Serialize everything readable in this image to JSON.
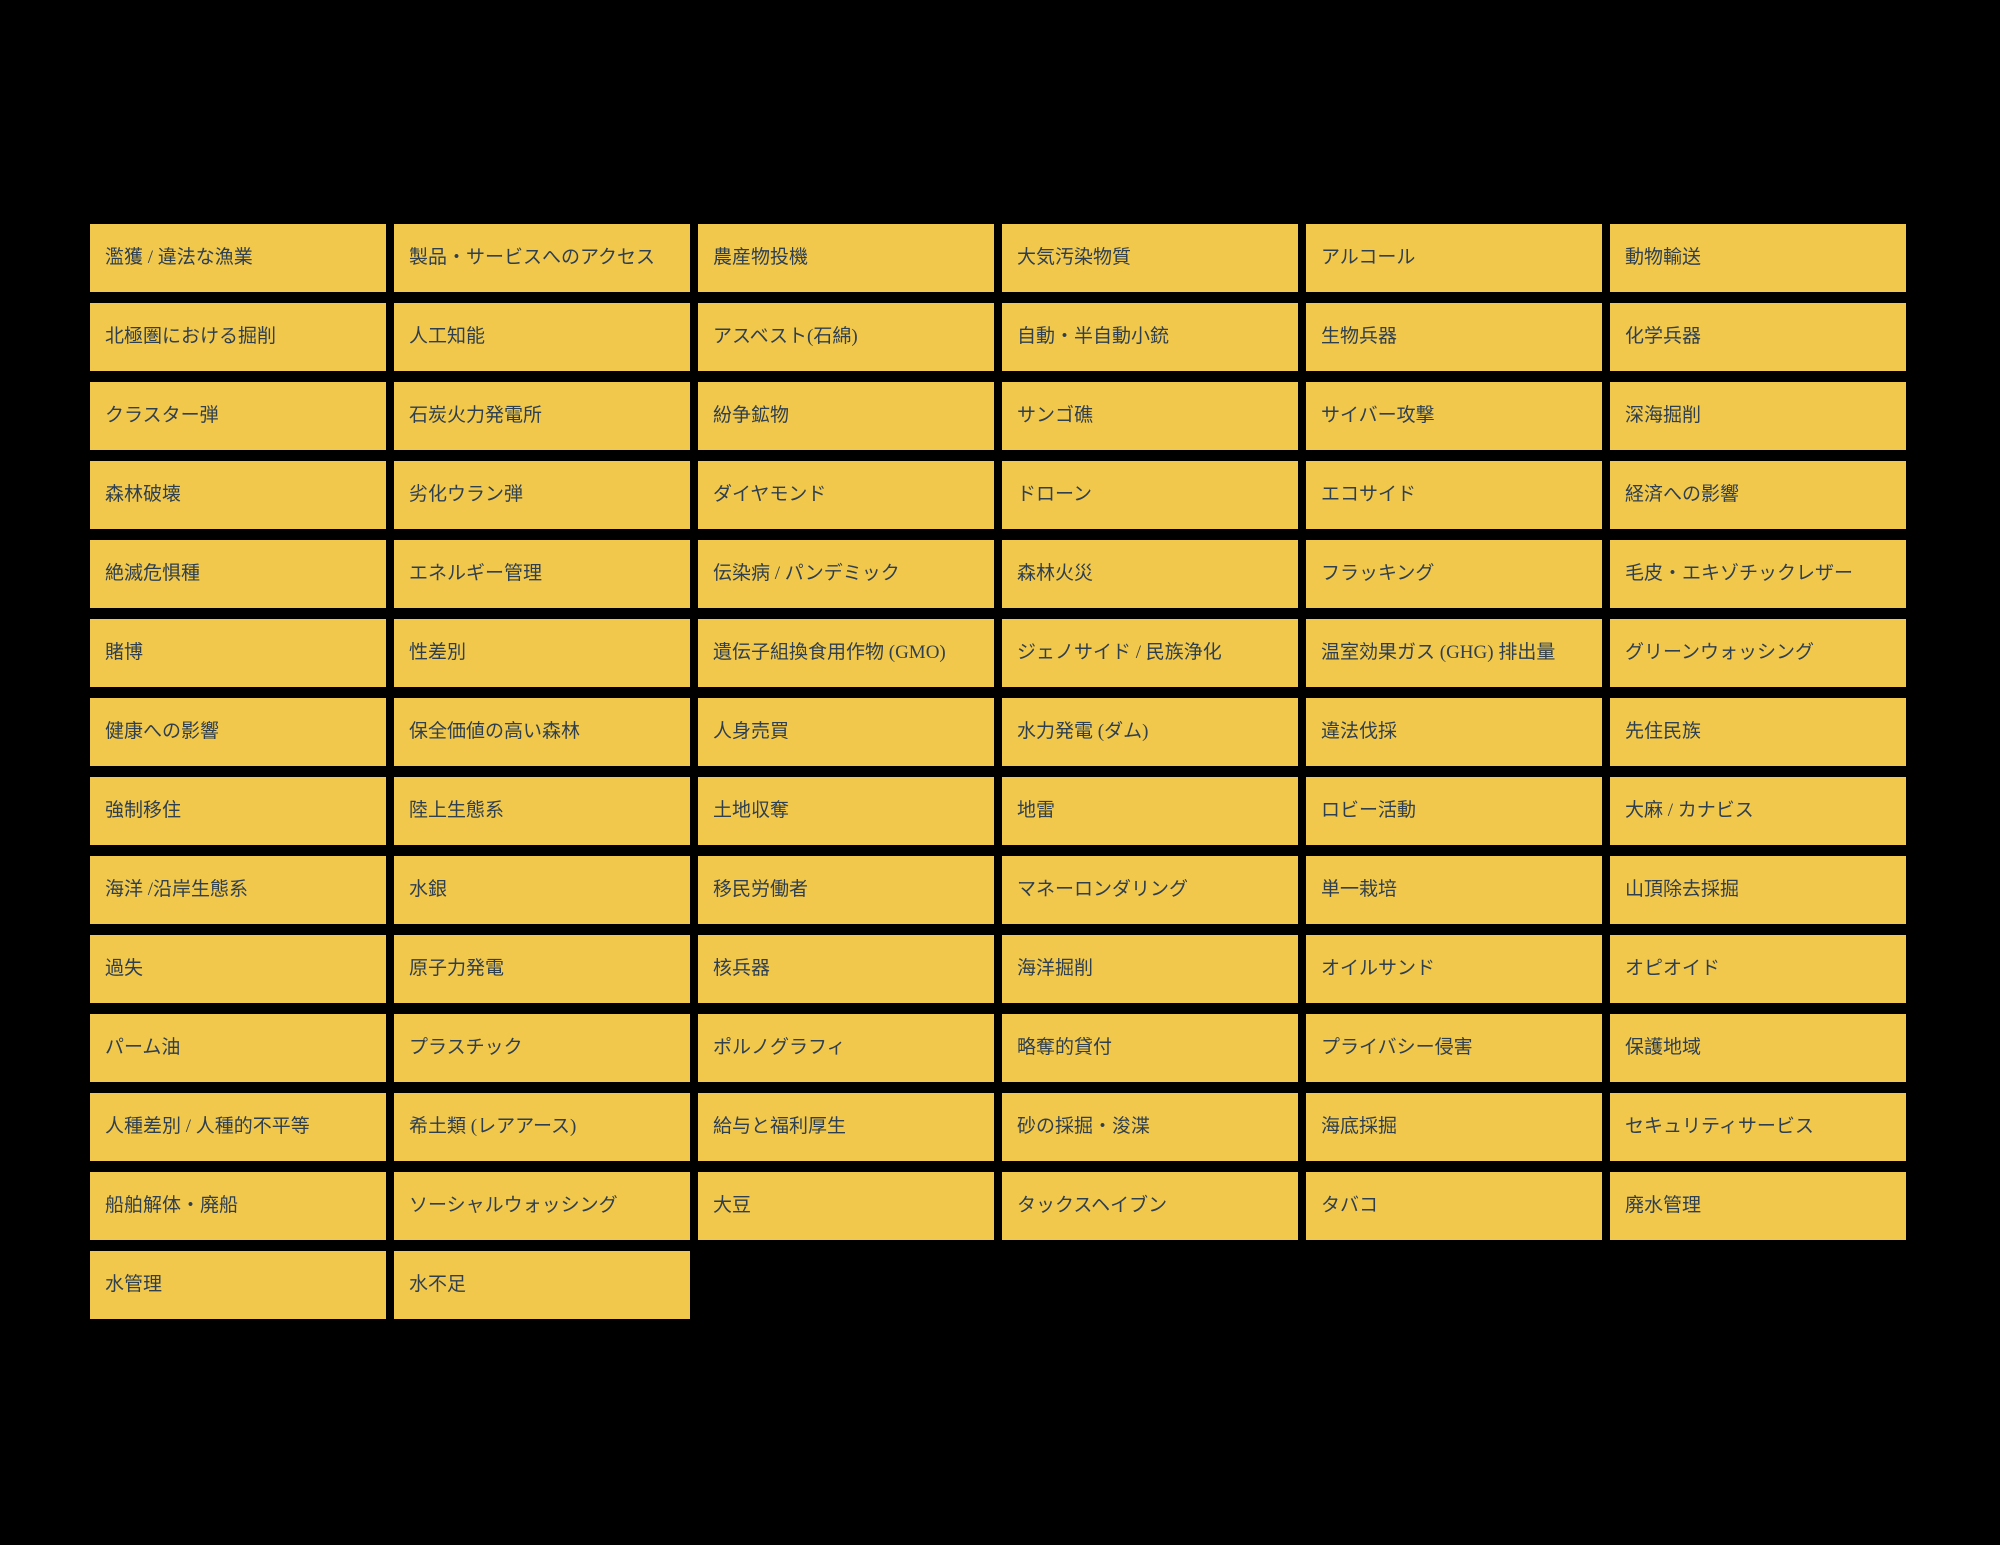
{
  "page": {
    "background_color": "#000000"
  },
  "grid": {
    "button_color": "#F2C84C",
    "text_color": "#2E3F50",
    "columns": 6,
    "items": [
      "濫獲 / 違法な漁業",
      "製品・サービスへのアクセス",
      "農産物投機",
      "大気汚染物質",
      "アルコール",
      "動物輸送",
      "北極圏における掘削",
      "人工知能",
      "アスベスト(石綿)",
      "自動・半自動小銃",
      "生物兵器",
      "化学兵器",
      "クラスター弾",
      "石炭火力発電所",
      "紛争鉱物",
      "サンゴ礁",
      "サイバー攻撃",
      "深海掘削",
      "森林破壊",
      "劣化ウラン弾",
      "ダイヤモンド",
      "ドローン",
      "エコサイド",
      "経済への影響",
      "絶滅危惧種",
      "エネルギー管理",
      "伝染病 / パンデミック",
      "森林火災",
      "フラッキング",
      "毛皮・エキゾチックレザー",
      "賭博",
      "性差別",
      "遺伝子組換食用作物 (GMO)",
      "ジェノサイド / 民族浄化",
      "温室効果ガス (GHG) 排出量",
      "グリーンウォッシング",
      "健康への影響",
      "保全価値の高い森林",
      "人身売買",
      "水力発電 (ダム)",
      "違法伐採",
      "先住民族",
      "強制移住",
      "陸上生態系",
      "土地収奪",
      "地雷",
      "ロビー活動",
      "大麻 / カナビス",
      "海洋 /沿岸生態系",
      "水銀",
      "移民労働者",
      "マネーロンダリング",
      "単一栽培",
      "山頂除去採掘",
      "過失",
      "原子力発電",
      "核兵器",
      "海洋掘削",
      "オイルサンド",
      "オピオイド",
      "パーム油",
      "プラスチック",
      "ポルノグラフィ",
      "略奪的貸付",
      "プライバシー侵害",
      "保護地域",
      "人種差別 / 人種的不平等",
      "希土類 (レアアース)",
      "給与と福利厚生",
      "砂の採掘・浚渫",
      "海底採掘",
      "セキュリティサービス",
      "船舶解体・廃船",
      "ソーシャルウォッシング",
      "大豆",
      "タックスヘイブン",
      "タバコ",
      "廃水管理",
      "水管理",
      "水不足"
    ]
  }
}
